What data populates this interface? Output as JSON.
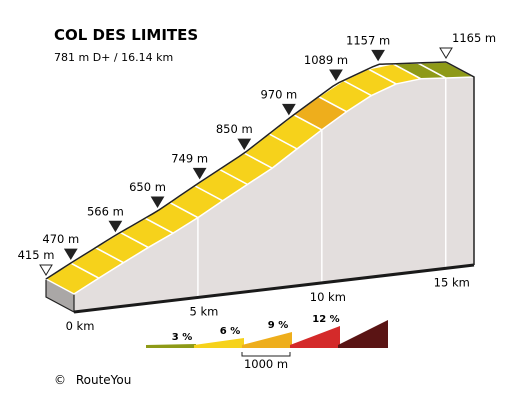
{
  "chart_data": {
    "type": "area",
    "title": "COL DES LIMITES",
    "subtitle": "781 m D+ / 16.14 km",
    "elevation_labels": [
      {
        "km": 0,
        "elev": 415,
        "label": "415 m",
        "marker": "start"
      },
      {
        "km": 1.0,
        "elev": 470,
        "label": "470 m",
        "marker": "point"
      },
      {
        "km": 2.8,
        "elev": 566,
        "label": "566 m",
        "marker": "point"
      },
      {
        "km": 4.5,
        "elev": 650,
        "label": "650 m",
        "marker": "point"
      },
      {
        "km": 6.2,
        "elev": 749,
        "label": "749 m",
        "marker": "point"
      },
      {
        "km": 8.0,
        "elev": 850,
        "label": "850 m",
        "marker": "point"
      },
      {
        "km": 9.8,
        "elev": 970,
        "label": "970 m",
        "marker": "point"
      },
      {
        "km": 11.7,
        "elev": 1089,
        "label": "1089 m",
        "marker": "point"
      },
      {
        "km": 13.4,
        "elev": 1157,
        "label": "1157 m",
        "marker": "point"
      },
      {
        "km": 16.14,
        "elev": 1165,
        "label": "1165 m",
        "marker": "end"
      }
    ],
    "segments": [
      {
        "from_km": 0,
        "to_km": 1,
        "color": "#f6d21b"
      },
      {
        "from_km": 1,
        "to_km": 2,
        "color": "#f6d21b"
      },
      {
        "from_km": 2,
        "to_km": 3,
        "color": "#f6d21b"
      },
      {
        "from_km": 3,
        "to_km": 4,
        "color": "#f6d21b"
      },
      {
        "from_km": 4,
        "to_km": 5,
        "color": "#f6d21b"
      },
      {
        "from_km": 5,
        "to_km": 6,
        "color": "#f6d21b"
      },
      {
        "from_km": 6,
        "to_km": 7,
        "color": "#f6d21b"
      },
      {
        "from_km": 7,
        "to_km": 8,
        "color": "#f6d21b"
      },
      {
        "from_km": 8,
        "to_km": 9,
        "color": "#f6d21b"
      },
      {
        "from_km": 9,
        "to_km": 10,
        "color": "#f6d21b"
      },
      {
        "from_km": 10,
        "to_km": 11,
        "color": "#eeae1c"
      },
      {
        "from_km": 11,
        "to_km": 12,
        "color": "#f6d21b"
      },
      {
        "from_km": 12,
        "to_km": 13,
        "color": "#f6d21b"
      },
      {
        "from_km": 13,
        "to_km": 14,
        "color": "#f6d21b"
      },
      {
        "from_km": 14,
        "to_km": 15,
        "color": "#8e9a17"
      },
      {
        "from_km": 15,
        "to_km": 16.14,
        "color": "#8e9a17"
      }
    ],
    "distance_labels": [
      "0 km",
      "5 km",
      "10 km",
      "15 km"
    ],
    "xlim": [
      0,
      16.14
    ],
    "ylim": [
      415,
      1165
    ],
    "legend": {
      "items": [
        {
          "label": "3 %",
          "color": "#8e9a17"
        },
        {
          "label": "6 %",
          "color": "#f6d21b"
        },
        {
          "label": "9 %",
          "color": "#eeae1c"
        },
        {
          "label": "12 %",
          "color": "#d42a2a"
        },
        {
          "label": "",
          "color": "#5a1414"
        }
      ],
      "scale_label": "1000 m",
      "placement": "bottom-center"
    },
    "colors": {
      "wall": "#e3dedd",
      "side": "#aaa7a6",
      "bottom_band": "#1a1a1a"
    }
  },
  "footer": {
    "copyright": "RouteYou",
    "copyright_symbol": "©"
  }
}
